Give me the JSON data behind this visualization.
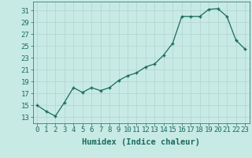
{
  "x": [
    0,
    1,
    2,
    3,
    4,
    5,
    6,
    7,
    8,
    9,
    10,
    11,
    12,
    13,
    14,
    15,
    16,
    17,
    18,
    19,
    20,
    21,
    22,
    23
  ],
  "y": [
    15.0,
    14.0,
    13.2,
    15.5,
    18.0,
    17.2,
    18.0,
    17.5,
    18.0,
    19.2,
    20.0,
    20.5,
    21.5,
    22.0,
    23.5,
    25.5,
    30.0,
    30.0,
    30.0,
    31.2,
    31.3,
    30.0,
    26.0,
    24.5
  ],
  "line_color": "#1a6b5e",
  "marker": "+",
  "marker_size": 3.5,
  "linewidth": 0.9,
  "bg_color": "#c8eae5",
  "grid_color": "#b0d4ce",
  "xlabel": "Humidex (Indice chaleur)",
  "yticks": [
    13,
    15,
    17,
    19,
    21,
    23,
    25,
    27,
    29,
    31
  ],
  "xticks": [
    0,
    1,
    2,
    3,
    4,
    5,
    6,
    7,
    8,
    9,
    10,
    11,
    12,
    13,
    14,
    15,
    16,
    17,
    18,
    19,
    20,
    21,
    22,
    23
  ],
  "ylim": [
    12.0,
    32.5
  ],
  "xlim": [
    -0.5,
    23.5
  ],
  "xlabel_fontsize": 7.5,
  "tick_fontsize": 6.5
}
